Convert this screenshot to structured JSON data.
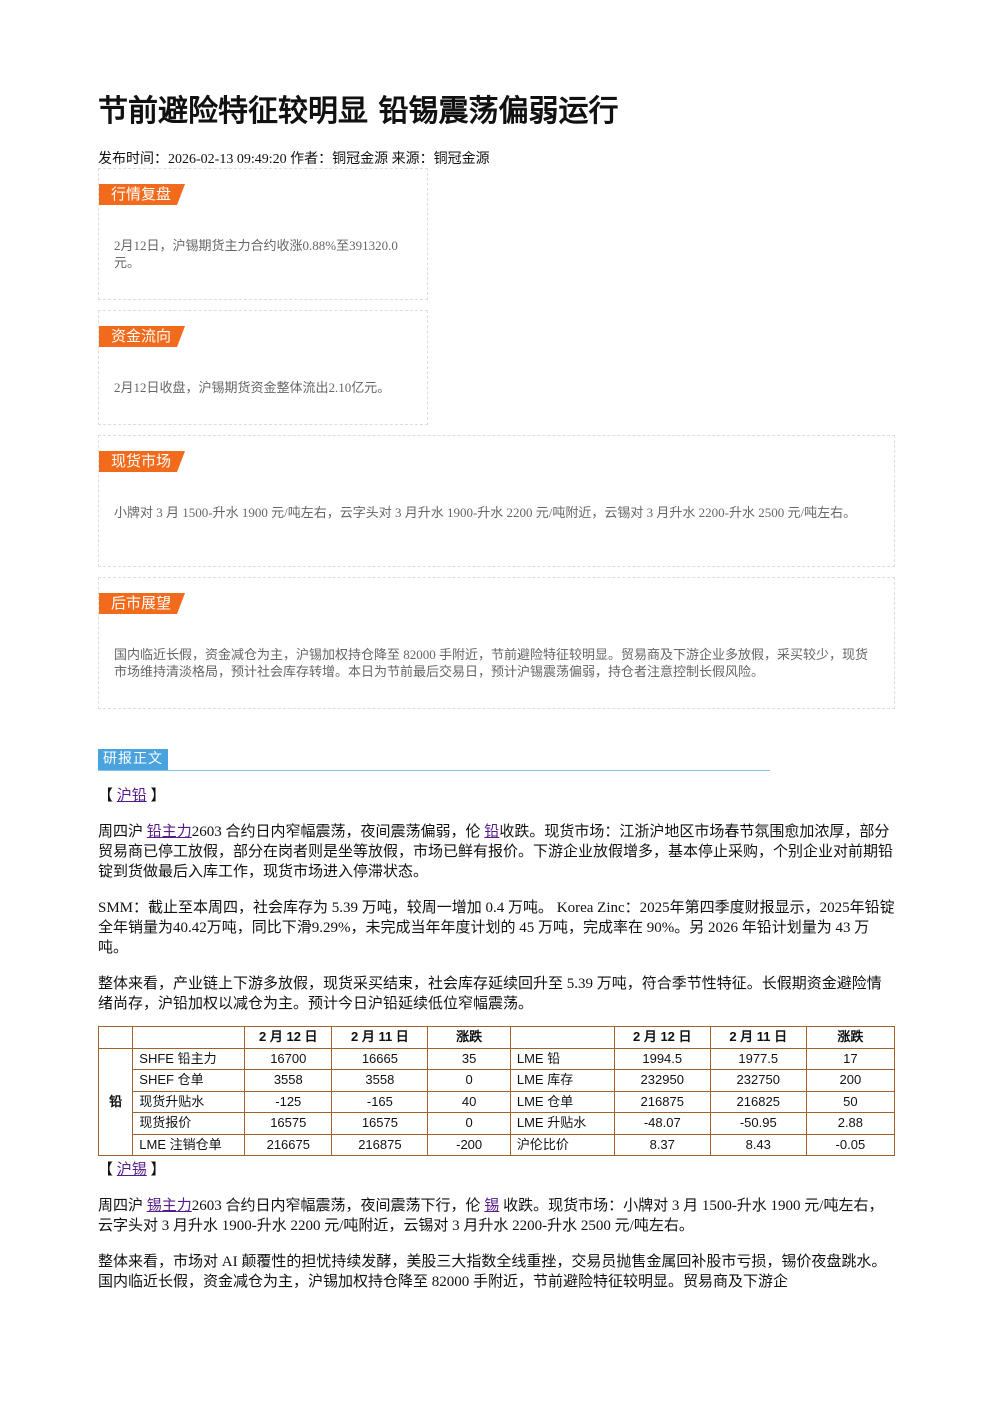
{
  "title": "节前避险特征较明显 铅锡震荡偏弱运行",
  "meta": "发布时间：2026-02-13 09:49:20 作者：铜冠金源 来源：铜冠金源",
  "boxes": [
    {
      "tag": "行情复盘",
      "text": "2月12日，沪锡期货主力合约收涨0.88%至391320.0元。"
    },
    {
      "tag": "资金流向",
      "text": "2月12日收盘，沪锡期货资金整体流出2.10亿元。"
    },
    {
      "tag": "现货市场",
      "text": "小牌对 3 月 1500-升水 1900 元/吨左右，云字头对 3 月升水 1900-升水 2200 元/吨附近，云锡对 3 月升水 2200-升水 2500 元/吨左右。"
    },
    {
      "tag": "后市展望",
      "text": "国内临近长假，资金减仓为主，沪锡加权持仓降至 82000 手附近，节前避险特征较明显。贸易商及下游企业多放假，采买较少，现货市场维持清淡格局，预计社会库存转增。本日为节前最后交易日，预计沪锡震荡偏弱，持仓者注意控制长假风险。"
    }
  ],
  "report": {
    "tag": "研报正文",
    "sections": [
      {
        "heading": [
          "【 ",
          {
            "link": "沪铅"
          },
          " 】"
        ],
        "paragraphs": [
          [
            "周四沪 ",
            {
              "link": "铅主力"
            },
            "2603 合约日内窄幅震荡，夜间震荡偏弱，伦 ",
            {
              "link": "铅"
            },
            "收跌。现货市场：江浙沪地区市场春节氛围愈加浓厚，部分贸易商已停工放假，部分在岗者则是坐等放假，市场已鲜有报价。下游企业放假增多，基本停止采购，个别企业对前期铅锭到货做最后入库工作，现货市场进入停滞状态。"
          ],
          [
            "SMM：截止至本周四，社会库存为 5.39 万吨，较周一增加 0.4 万吨。 Korea Zinc：2025年第四季度财报显示，2025年铅锭全年销量为40.42万吨，同比下滑9.29%，未完成当年年度计划的 45 万吨，完成率在 90%。另 2026 年铅计划量为 43 万吨。"
          ],
          [
            "整体来看，产业链上下游多放假，现货采买结束，社会库存延续回升至 5.39 万吨，符合季节性特征。长假期资金避险情绪尚存，沪铅加权以减仓为主。预计今日沪铅延续低位窄幅震荡。"
          ]
        ],
        "table": {
          "metal": "铅",
          "header_left": [
            "2 月 12 日",
            "2 月 11 日",
            "涨跌"
          ],
          "header_right": [
            "2 月 12 日",
            "2 月 11 日",
            "涨跌"
          ],
          "rows": [
            [
              "SHFE 铅主力",
              "16700",
              "16665",
              "35",
              "LME 铅",
              "1994.5",
              "1977.5",
              "17"
            ],
            [
              "SHEF 仓单",
              "3558",
              "3558",
              "0",
              "LME 库存",
              "232950",
              "232750",
              "200"
            ],
            [
              "现货升贴水",
              "-125",
              "-165",
              "40",
              "LME 仓单",
              "216875",
              "216825",
              "50"
            ],
            [
              "现货报价",
              "16575",
              "16575",
              "0",
              "LME 升贴水",
              "-48.07",
              "-50.95",
              "2.88"
            ],
            [
              "LME 注销仓单",
              "216675",
              "216875",
              "-200",
              "沪伦比价",
              "8.37",
              "8.43",
              "-0.05"
            ]
          ]
        }
      },
      {
        "heading": [
          "【 ",
          {
            "link": "沪锡"
          },
          " 】"
        ],
        "paragraphs": [
          [
            "周四沪 ",
            {
              "link": "锡主力"
            },
            "2603 合约日内窄幅震荡，夜间震荡下行，伦 ",
            {
              "link": "锡"
            },
            " 收跌。现货市场：小牌对 3 月 1500-升水 1900 元/吨左右，云字头对 3 月升水 1900-升水 2200 元/吨附近，云锡对 3 月升水 2200-升水 2500 元/吨左右。"
          ],
          [
            "整体来看，市场对 AI 颠覆性的担忧持续发酵，美股三大指数全线重挫，交易员抛售金属回补股市亏损，锡价夜盘跳水。国内临近长假，资金减仓为主，沪锡加权持仓降至 82000 手附近，节前避险特征较明显。贸易商及下游企"
          ]
        ]
      }
    ]
  }
}
